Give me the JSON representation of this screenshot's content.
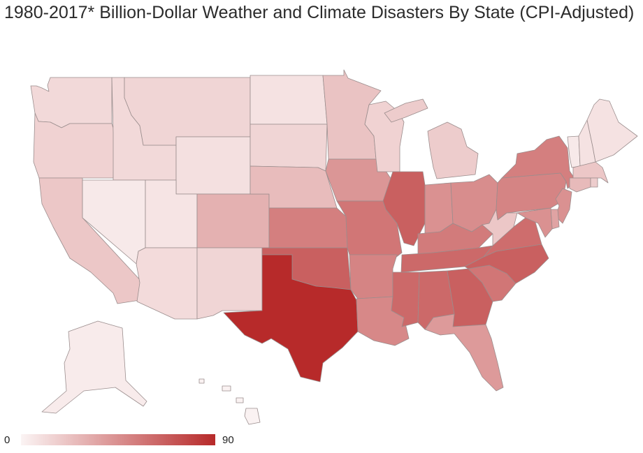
{
  "title": "1980-2017* Billion-Dollar Weather and Climate Disasters By State (CPI-Adjusted)",
  "legend": {
    "min_label": "0",
    "max_label": "90",
    "min_color": "#fbf4f4",
    "max_color": "#b72a2a"
  },
  "scale": {
    "min": 0,
    "max": 90
  },
  "states": [
    {
      "id": "WA",
      "value": 12
    },
    {
      "id": "OR",
      "value": 15
    },
    {
      "id": "CA",
      "value": 20
    },
    {
      "id": "ID",
      "value": 12
    },
    {
      "id": "NV",
      "value": 5
    },
    {
      "id": "MT",
      "value": 14
    },
    {
      "id": "WY",
      "value": 9
    },
    {
      "id": "UT",
      "value": 7
    },
    {
      "id": "AZ",
      "value": 11
    },
    {
      "id": "CO",
      "value": 30
    },
    {
      "id": "NM",
      "value": 14
    },
    {
      "id": "ND",
      "value": 8
    },
    {
      "id": "SD",
      "value": 14
    },
    {
      "id": "NE",
      "value": 25
    },
    {
      "id": "KS",
      "value": 52
    },
    {
      "id": "OK",
      "value": 66
    },
    {
      "id": "TX",
      "value": 90
    },
    {
      "id": "MN",
      "value": 22
    },
    {
      "id": "IA",
      "value": 42
    },
    {
      "id": "MO",
      "value": 56
    },
    {
      "id": "AR",
      "value": 50
    },
    {
      "id": "LA",
      "value": 48
    },
    {
      "id": "WI",
      "value": 15
    },
    {
      "id": "IL",
      "value": 66
    },
    {
      "id": "MI",
      "value": 18
    },
    {
      "id": "IN",
      "value": 44
    },
    {
      "id": "OH",
      "value": 46
    },
    {
      "id": "KY",
      "value": 54
    },
    {
      "id": "TN",
      "value": 62
    },
    {
      "id": "MS",
      "value": 62
    },
    {
      "id": "AL",
      "value": 62
    },
    {
      "id": "GA",
      "value": 66
    },
    {
      "id": "FL",
      "value": 40
    },
    {
      "id": "SC",
      "value": 56
    },
    {
      "id": "NC",
      "value": 66
    },
    {
      "id": "VA",
      "value": 60
    },
    {
      "id": "WV",
      "value": 20
    },
    {
      "id": "PA",
      "value": 50
    },
    {
      "id": "NY",
      "value": 52
    },
    {
      "id": "VT",
      "value": 5
    },
    {
      "id": "NH",
      "value": 8
    },
    {
      "id": "ME",
      "value": 8
    },
    {
      "id": "MA",
      "value": 20
    },
    {
      "id": "CT",
      "value": 26
    },
    {
      "id": "RI",
      "value": 18
    },
    {
      "id": "NJ",
      "value": 44
    },
    {
      "id": "DE",
      "value": 36
    },
    {
      "id": "MD",
      "value": 44
    },
    {
      "id": "AK",
      "value": 4
    },
    {
      "id": "HI",
      "value": 1
    }
  ]
}
